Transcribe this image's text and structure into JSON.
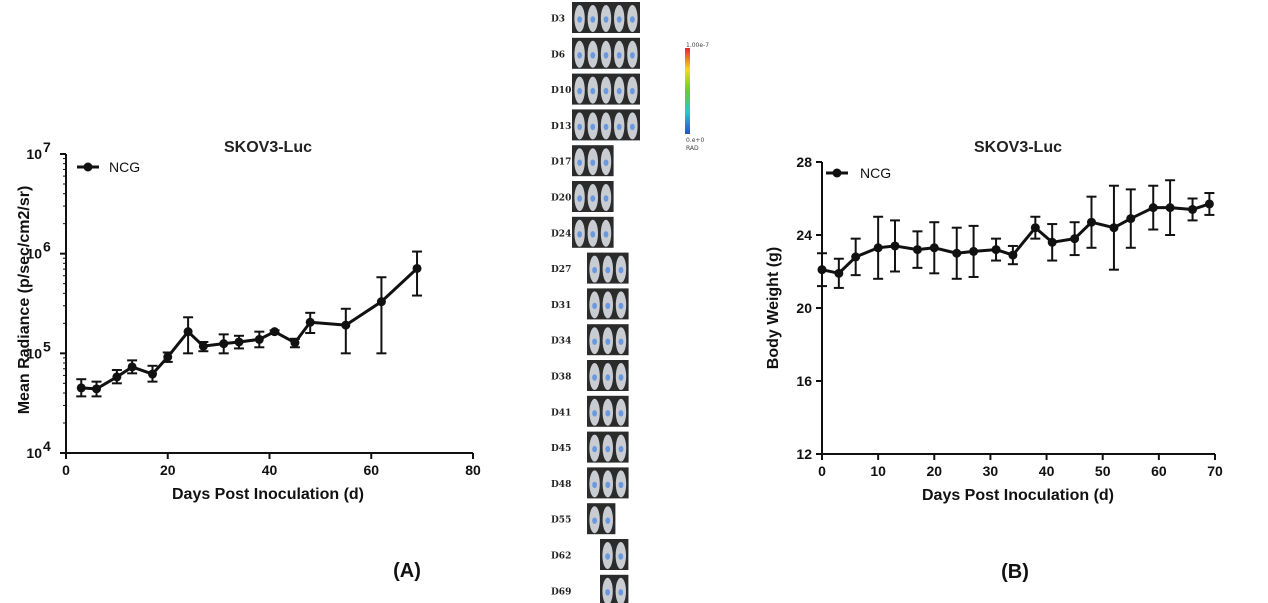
{
  "chart_data": [
    {
      "panel_label": "(A)",
      "type": "line",
      "title": "SKOV3-Luc",
      "xlabel": "Days Post Inoculation (d)",
      "ylabel": "Mean Radiance (p/sec/cm2/sr)",
      "yscale": "log",
      "xlim": [
        0,
        80
      ],
      "ylim": [
        10000,
        10000000
      ],
      "xticks": [
        "0",
        "20",
        "40",
        "60",
        "80"
      ],
      "yticks": [
        {
          "base": "10",
          "exp": "4"
        },
        {
          "base": "10",
          "exp": "5"
        },
        {
          "base": "10",
          "exp": "6"
        },
        {
          "base": "10",
          "exp": "7"
        }
      ],
      "legend": {
        "label": "NCG",
        "position": "top-left"
      },
      "series": [
        {
          "name": "NCG",
          "x": [
            3,
            6,
            10,
            13,
            17,
            20,
            24,
            27,
            31,
            34,
            38,
            41,
            45,
            48,
            55,
            62,
            69
          ],
          "values": [
            45000,
            44000,
            58000,
            73000,
            62000,
            92000,
            165000,
            118000,
            125000,
            130000,
            138000,
            165000,
            128000,
            205000,
            192000,
            330000,
            710000
          ],
          "err_low": [
            37000,
            37000,
            50000,
            63000,
            52000,
            82000,
            100000,
            105000,
            100000,
            112000,
            115000,
            160000,
            115000,
            160000,
            100000,
            100000,
            380000
          ],
          "err_high": [
            55000,
            52000,
            68000,
            85000,
            75000,
            102000,
            230000,
            130000,
            155000,
            150000,
            165000,
            170000,
            140000,
            255000,
            280000,
            580000,
            1050000
          ]
        }
      ]
    },
    {
      "panel_label": "(B)",
      "type": "line",
      "title": "SKOV3-Luc",
      "xlabel": "Days Post Inoculation (d)",
      "ylabel": "Body Weight (g)",
      "yscale": "linear",
      "xlim": [
        0,
        70
      ],
      "ylim": [
        12,
        28
      ],
      "xticks": [
        "0",
        "10",
        "20",
        "30",
        "40",
        "50",
        "60",
        "70"
      ],
      "yticks": [
        "12",
        "16",
        "20",
        "24",
        "28"
      ],
      "legend": {
        "label": "NCG",
        "position": "top-left"
      },
      "series": [
        {
          "name": "NCG",
          "x": [
            0,
            3,
            6,
            10,
            13,
            17,
            20,
            24,
            27,
            31,
            34,
            38,
            41,
            45,
            48,
            52,
            55,
            59,
            62,
            66,
            69
          ],
          "values": [
            22.1,
            21.9,
            22.8,
            23.3,
            23.4,
            23.2,
            23.3,
            23.0,
            23.1,
            23.2,
            22.9,
            24.4,
            23.6,
            23.8,
            24.7,
            24.4,
            24.9,
            25.5,
            25.5,
            25.4,
            25.7
          ],
          "err": [
            0.9,
            0.8,
            1.0,
            1.7,
            1.4,
            1.0,
            1.4,
            1.4,
            1.4,
            0.6,
            0.5,
            0.6,
            1.0,
            0.9,
            1.4,
            2.3,
            1.6,
            1.2,
            1.5,
            0.6,
            0.6
          ]
        }
      ]
    }
  ],
  "imaging_panel": {
    "days": [
      "D3",
      "D6",
      "D10",
      "D13",
      "D17",
      "D20",
      "D24",
      "D27",
      "D31",
      "D34",
      "D38",
      "D41",
      "D45",
      "D48",
      "D55",
      "D62",
      "D69"
    ],
    "mice_counts": [
      5,
      5,
      5,
      5,
      3,
      3,
      3,
      3,
      3,
      3,
      3,
      3,
      3,
      3,
      2,
      2,
      2
    ],
    "scale_max": "1.00e-7",
    "scale_min": "0.e+0",
    "scale_unit": "RAD",
    "colors": {
      "mouse_body": "#c9ccd1",
      "signal": "#5a8fe0",
      "box": "#2b2b2b"
    }
  }
}
